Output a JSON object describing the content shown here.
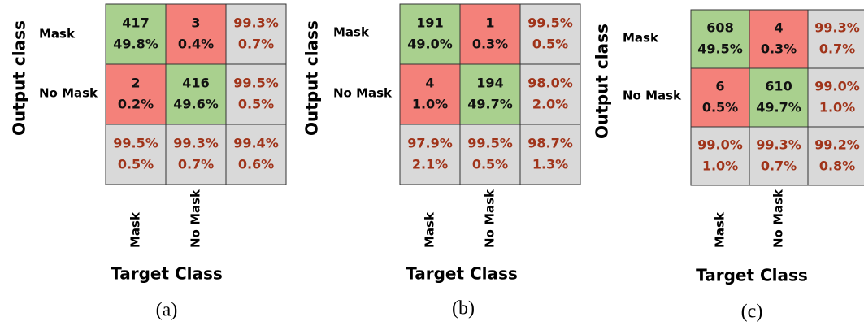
{
  "panels": [
    {
      "label": "(a)",
      "output_label": "Output class",
      "target_label": "Target Class",
      "row_labels": [
        "Mask",
        "No Mask"
      ],
      "col_labels": [
        "Mask",
        "No Mask"
      ],
      "cells": [
        [
          [
            "417",
            "49.8%"
          ],
          [
            "3",
            "0.4%"
          ],
          [
            "99.3%",
            "0.7%"
          ]
        ],
        [
          [
            "2",
            "0.2%"
          ],
          [
            "416",
            "49.6%"
          ],
          [
            "99.5%",
            "0.5%"
          ]
        ],
        [
          [
            "99.5%",
            "0.5%"
          ],
          [
            "99.3%",
            "0.7%"
          ],
          [
            "99.4%",
            "0.6%"
          ]
        ]
      ]
    },
    {
      "label": "(b)",
      "output_label": "Output class",
      "target_label": "Target Class",
      "row_labels": [
        "Mask",
        "No Mask"
      ],
      "col_labels": [
        "Mask",
        "No Mask"
      ],
      "cells": [
        [
          [
            "191",
            "49.0%"
          ],
          [
            "1",
            "0.3%"
          ],
          [
            "99.5%",
            "0.5%"
          ]
        ],
        [
          [
            "4",
            "1.0%"
          ],
          [
            "194",
            "49.7%"
          ],
          [
            "98.0%",
            "2.0%"
          ]
        ],
        [
          [
            "97.9%",
            "2.1%"
          ],
          [
            "99.5%",
            "0.5%"
          ],
          [
            "98.7%",
            "1.3%"
          ]
        ]
      ]
    },
    {
      "label": "(c)",
      "output_label": "Output class",
      "target_label": "Target Class",
      "row_labels": [
        "Mask",
        "No Mask"
      ],
      "col_labels": [
        "Mask",
        "No Mask"
      ],
      "cells": [
        [
          [
            "608",
            "49.5%"
          ],
          [
            "4",
            "0.3%"
          ],
          [
            "99.3%",
            "0.7%"
          ]
        ],
        [
          [
            "6",
            "0.5%"
          ],
          [
            "610",
            "49.7%"
          ],
          [
            "99.0%",
            "1.0%"
          ]
        ],
        [
          [
            "99.0%",
            "1.0%"
          ],
          [
            "99.3%",
            "0.7%"
          ],
          [
            "99.2%",
            "0.8%"
          ]
        ]
      ]
    }
  ]
}
